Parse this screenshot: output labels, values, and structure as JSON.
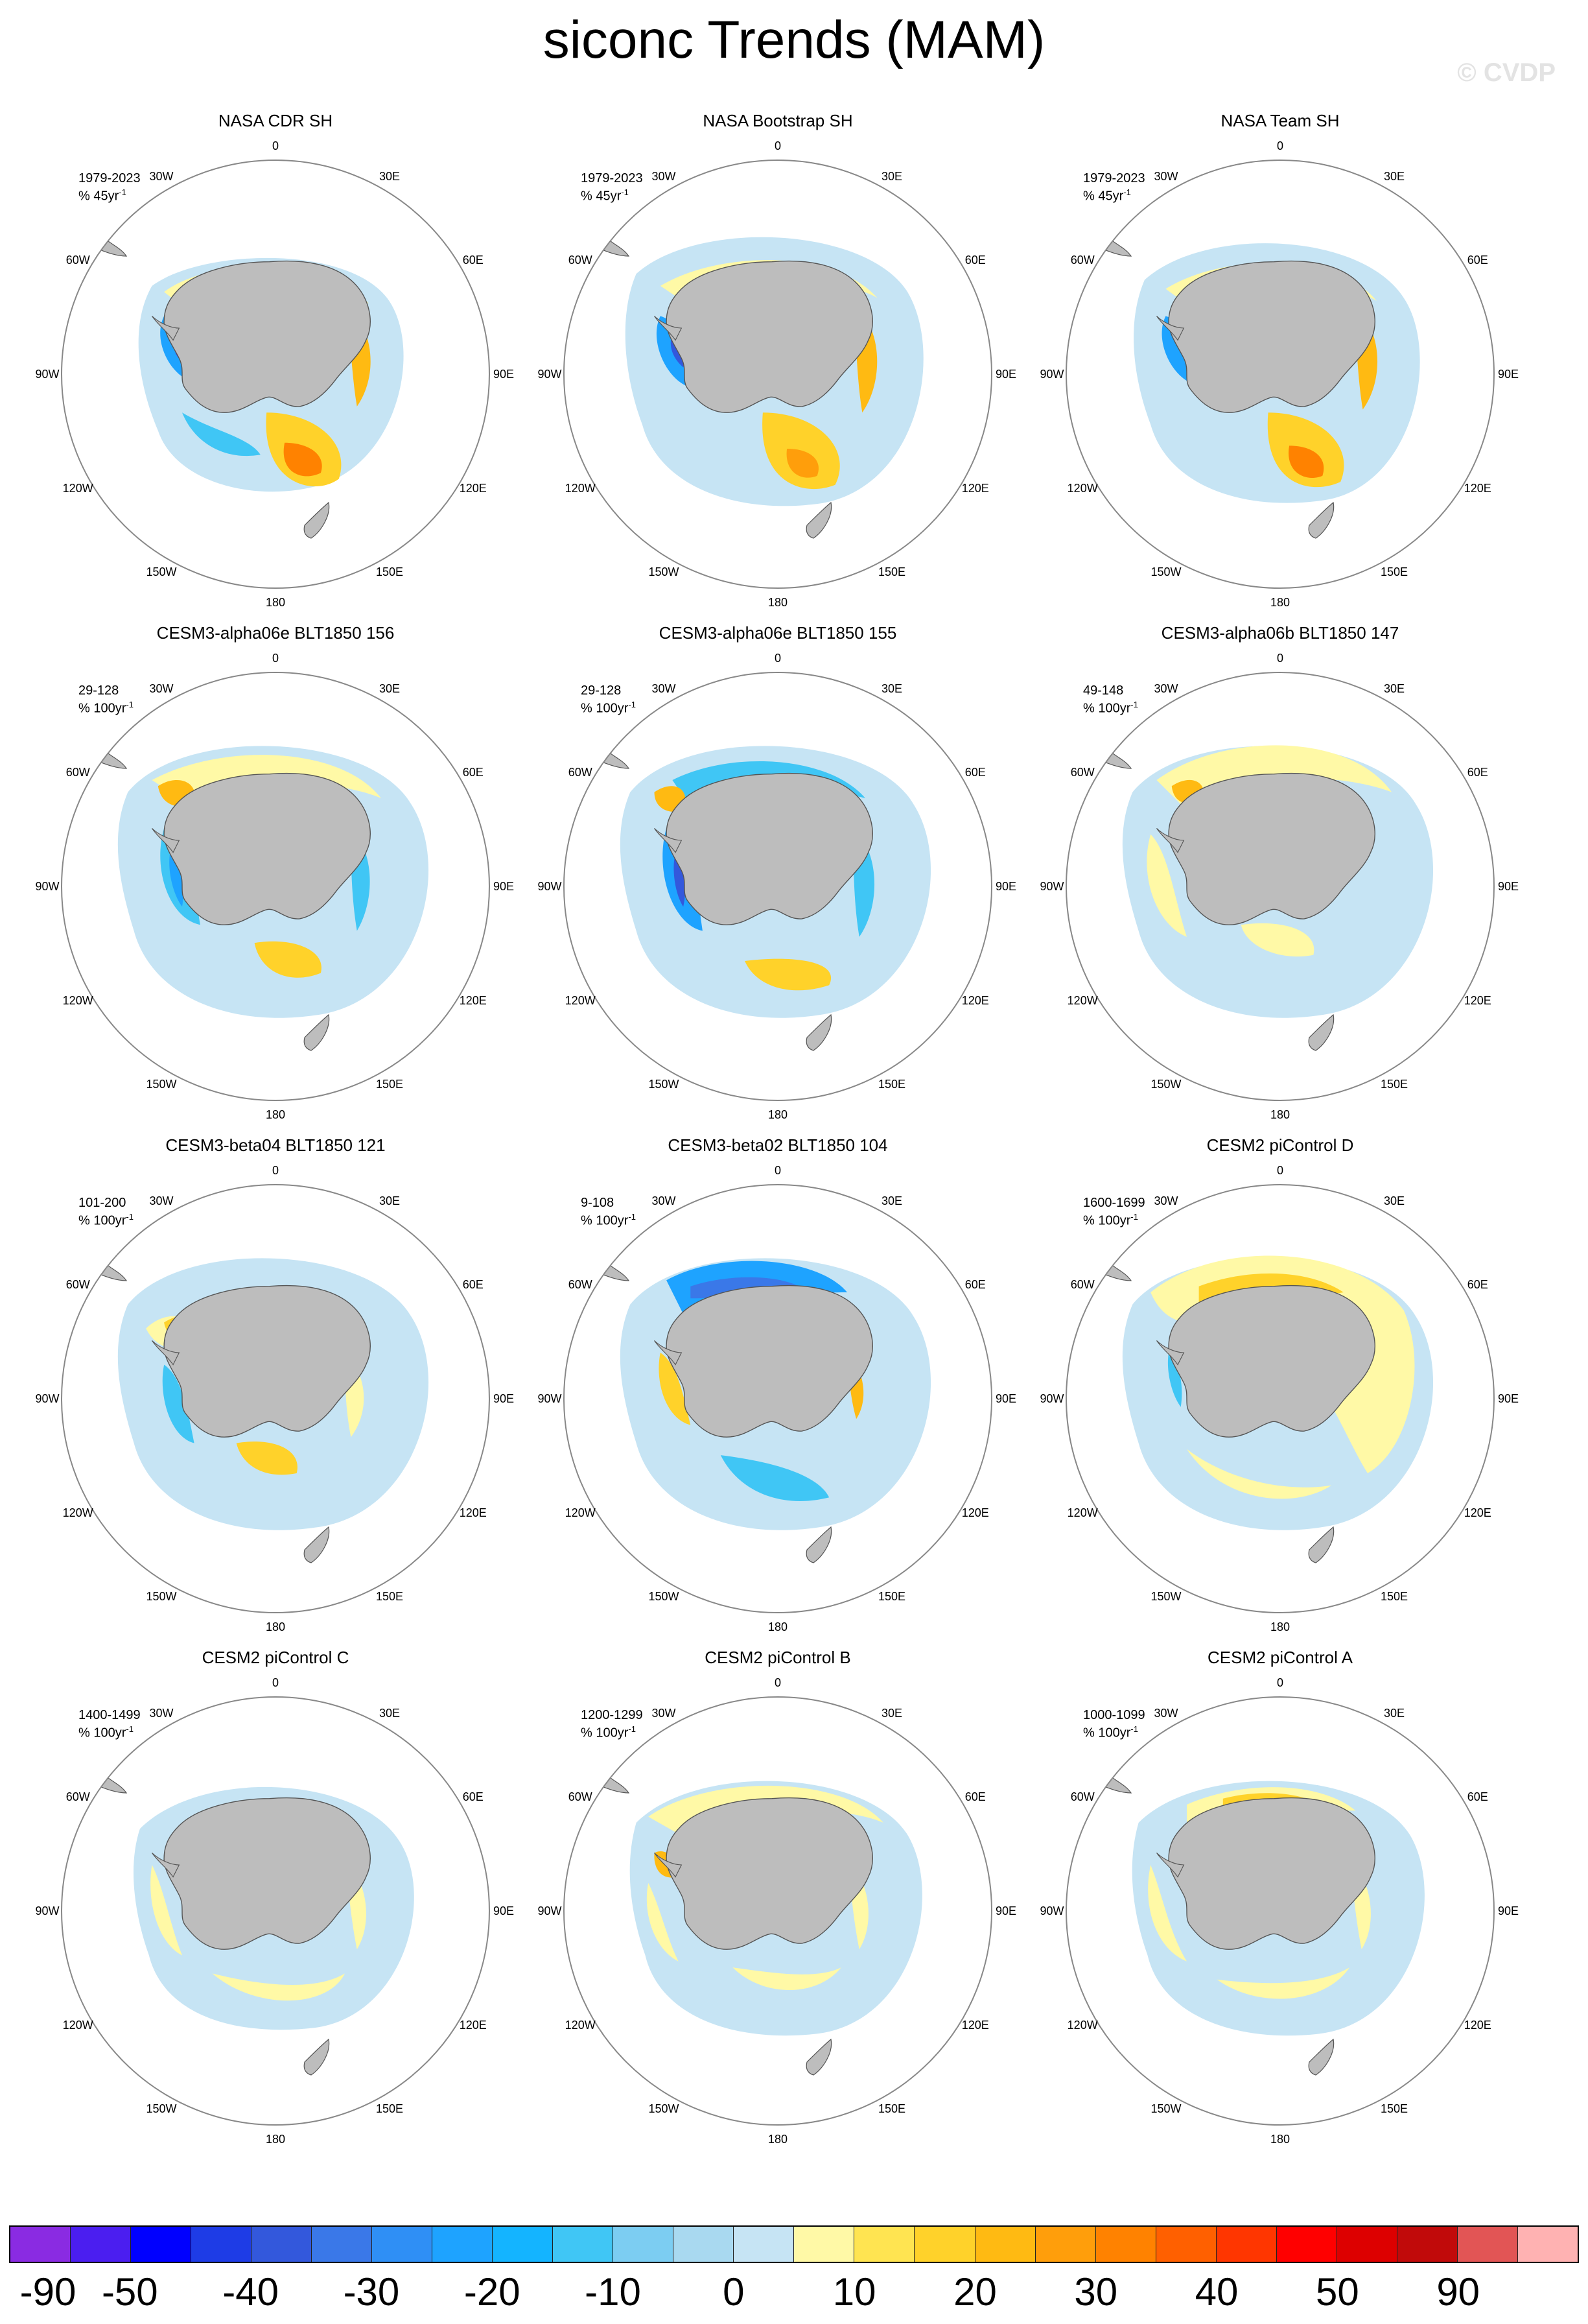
{
  "title": "siconc Trends (MAM)",
  "watermark": "© CVDP",
  "longitude_labels": [
    "0",
    "30E",
    "60E",
    "90E",
    "120E",
    "150E",
    "180",
    "150W",
    "120W",
    "90W",
    "60W",
    "30W"
  ],
  "panels": [
    {
      "title": "NASA CDR SH",
      "period": "1979-2023",
      "units": "% 45yr",
      "pattern": "obs1"
    },
    {
      "title": "NASA Bootstrap SH",
      "period": "1979-2023",
      "units": "% 45yr",
      "pattern": "obs2"
    },
    {
      "title": "NASA Team SH",
      "period": "1979-2023",
      "units": "% 45yr",
      "pattern": "obs3"
    },
    {
      "title": "CESM3-alpha06e BLT1850 156",
      "period": "29-128",
      "units": "% 100yr",
      "pattern": "blue1"
    },
    {
      "title": "CESM3-alpha06e BLT1850 155",
      "period": "29-128",
      "units": "% 100yr",
      "pattern": "blue2"
    },
    {
      "title": "CESM3-alpha06b BLT1850 147",
      "period": "49-148",
      "units": "% 100yr",
      "pattern": "mixed1"
    },
    {
      "title": "CESM3-beta04 BLT1850 121",
      "period": "101-200",
      "units": "% 100yr",
      "pattern": "mixed2"
    },
    {
      "title": "CESM3-beta02 BLT1850 104",
      "period": "9-108",
      "units": "% 100yr",
      "pattern": "blue3"
    },
    {
      "title": "CESM2 piControl D",
      "period": "1600-1699",
      "units": "% 100yr",
      "pattern": "yellow1"
    },
    {
      "title": "CESM2 piControl C",
      "period": "1400-1499",
      "units": "% 100yr",
      "pattern": "yellow2"
    },
    {
      "title": "CESM2 piControl B",
      "period": "1200-1299",
      "units": "% 100yr",
      "pattern": "yellow3"
    },
    {
      "title": "CESM2 piControl A",
      "period": "1000-1099",
      "units": "% 100yr",
      "pattern": "yellow4"
    }
  ],
  "colorbar": {
    "colors": [
      "#8a2be2",
      "#4b1ef0",
      "#0000ff",
      "#1e3ce6",
      "#3358dc",
      "#3a78e8",
      "#2f8ff5",
      "#1ea3ff",
      "#14b4ff",
      "#40c6f5",
      "#7ccdf2",
      "#a9d9f0",
      "#c6e4f4",
      "#fff9a6",
      "#ffe451",
      "#ffd22a",
      "#ffba12",
      "#ff9e0b",
      "#ff8200",
      "#ff6000",
      "#ff3600",
      "#ff0000",
      "#dd0000",
      "#c10a0a",
      "#e25555",
      "#ffb2b2"
    ],
    "labels": [
      "-90",
      "-50",
      "-40",
      "-30",
      "-20",
      "-10",
      "0",
      "10",
      "20",
      "30",
      "40",
      "50",
      "90"
    ]
  }
}
